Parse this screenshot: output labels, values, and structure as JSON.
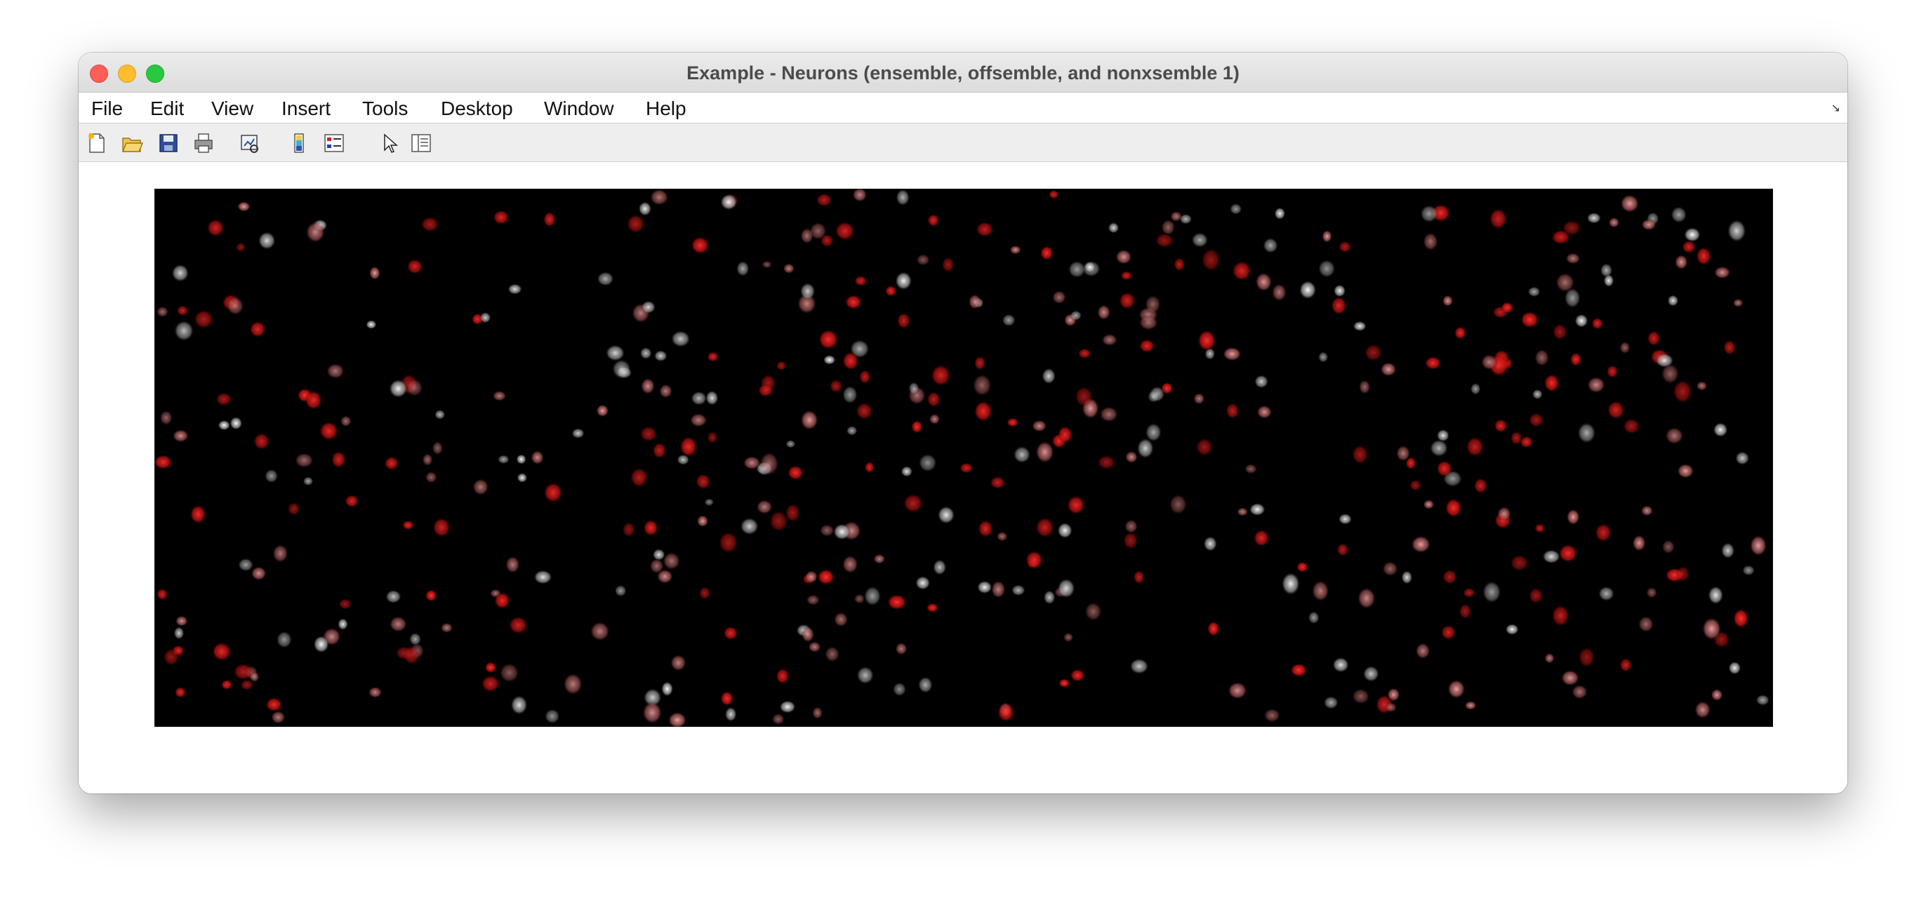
{
  "window": {
    "title": "Example - Neurons (ensemble, offsemble, and nonxsemble 1)"
  },
  "menu": {
    "items": [
      "File",
      "Edit",
      "View",
      "Insert",
      "Tools",
      "Desktop",
      "Window",
      "Help"
    ]
  },
  "toolbar": {
    "icons": [
      "new-figure-icon",
      "open-file-icon",
      "save-icon",
      "print-icon",
      "link-plot-icon",
      "colorbar-icon",
      "legend-icon",
      "edit-plot-pointer-icon",
      "property-inspector-icon"
    ]
  },
  "colors": {
    "ensemble": "#d81b1b",
    "offsemble": "#c87a7a",
    "nonxsemble": "#d8d8d8",
    "background": "#000000"
  },
  "figure": {
    "neuron_count": 480
  }
}
